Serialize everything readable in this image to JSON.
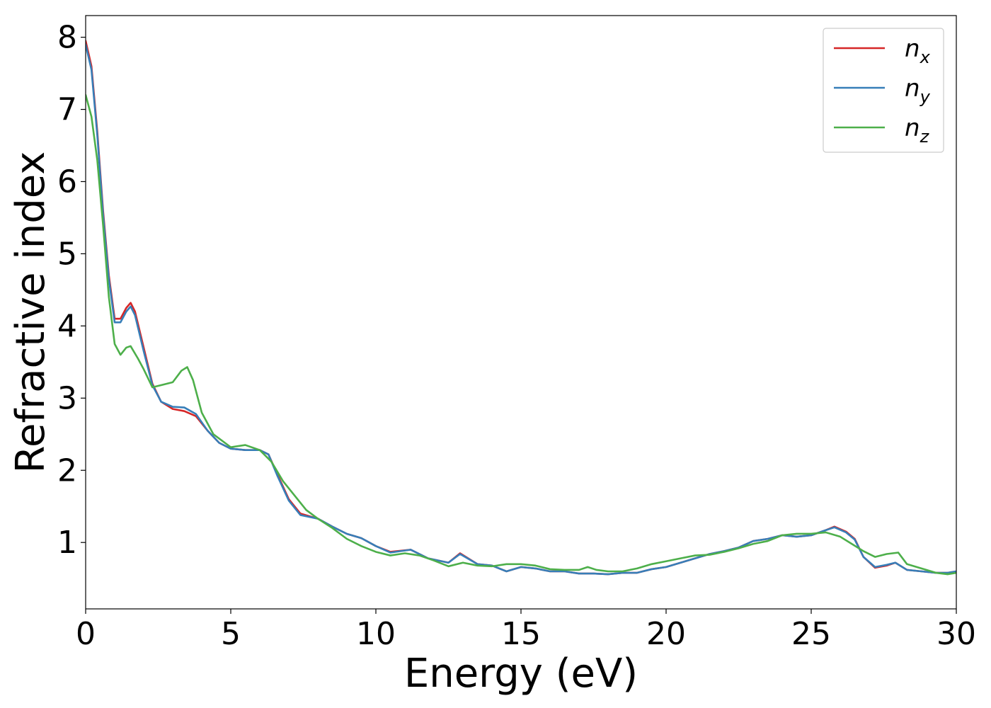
{
  "chart_data": {
    "type": "line",
    "title": "",
    "xlabel": "Energy (eV)",
    "ylabel": "Refractive index",
    "xlim": [
      0,
      30
    ],
    "ylim": [
      0.08,
      8.3
    ],
    "xticks": [
      0,
      5,
      10,
      15,
      20,
      25,
      30
    ],
    "xtick_labels": [
      "0",
      "5",
      "10",
      "15",
      "20",
      "25",
      "30"
    ],
    "yticks": [
      1,
      2,
      3,
      4,
      5,
      6,
      7,
      8
    ],
    "ytick_labels": [
      "1",
      "2",
      "3",
      "4",
      "5",
      "6",
      "7",
      "8"
    ],
    "grid": false,
    "legend_position": "top-right",
    "series": [
      {
        "name": "n",
        "subscript": "x",
        "color": "#d62728",
        "points": [
          [
            0,
            7.95
          ],
          [
            0.2,
            7.6
          ],
          [
            0.4,
            6.7
          ],
          [
            0.6,
            5.6
          ],
          [
            0.8,
            4.7
          ],
          [
            1.0,
            4.1
          ],
          [
            1.2,
            4.1
          ],
          [
            1.4,
            4.25
          ],
          [
            1.55,
            4.32
          ],
          [
            1.7,
            4.2
          ],
          [
            2.0,
            3.7
          ],
          [
            2.3,
            3.2
          ],
          [
            2.6,
            2.95
          ],
          [
            3.0,
            2.85
          ],
          [
            3.4,
            2.82
          ],
          [
            3.8,
            2.75
          ],
          [
            4.2,
            2.55
          ],
          [
            4.6,
            2.38
          ],
          [
            5.0,
            2.3
          ],
          [
            5.5,
            2.28
          ],
          [
            6.0,
            2.28
          ],
          [
            6.3,
            2.22
          ],
          [
            6.6,
            1.95
          ],
          [
            7.0,
            1.6
          ],
          [
            7.4,
            1.4
          ],
          [
            8.0,
            1.33
          ],
          [
            8.5,
            1.22
          ],
          [
            9.0,
            1.12
          ],
          [
            9.5,
            1.06
          ],
          [
            10.0,
            0.95
          ],
          [
            10.5,
            0.87
          ],
          [
            11.2,
            0.9
          ],
          [
            11.8,
            0.78
          ],
          [
            12.5,
            0.72
          ],
          [
            12.9,
            0.85
          ],
          [
            13.5,
            0.7
          ],
          [
            14.0,
            0.68
          ],
          [
            14.5,
            0.6
          ],
          [
            15.0,
            0.66
          ],
          [
            15.5,
            0.64
          ],
          [
            16.0,
            0.6
          ],
          [
            16.5,
            0.6
          ],
          [
            17.0,
            0.57
          ],
          [
            17.5,
            0.57
          ],
          [
            18.0,
            0.56
          ],
          [
            18.5,
            0.58
          ],
          [
            19.0,
            0.58
          ],
          [
            19.5,
            0.63
          ],
          [
            20.0,
            0.66
          ],
          [
            20.5,
            0.72
          ],
          [
            21.0,
            0.78
          ],
          [
            21.5,
            0.84
          ],
          [
            22.0,
            0.88
          ],
          [
            22.5,
            0.93
          ],
          [
            23.0,
            1.02
          ],
          [
            23.5,
            1.05
          ],
          [
            24.0,
            1.1
          ],
          [
            24.5,
            1.08
          ],
          [
            25.0,
            1.1
          ],
          [
            25.5,
            1.17
          ],
          [
            25.8,
            1.22
          ],
          [
            26.2,
            1.15
          ],
          [
            26.5,
            1.05
          ],
          [
            26.8,
            0.8
          ],
          [
            27.2,
            0.65
          ],
          [
            27.6,
            0.68
          ],
          [
            27.9,
            0.72
          ],
          [
            28.3,
            0.62
          ],
          [
            28.8,
            0.6
          ],
          [
            29.3,
            0.58
          ],
          [
            29.7,
            0.58
          ],
          [
            30.0,
            0.6
          ]
        ]
      },
      {
        "name": "n",
        "subscript": "y",
        "color": "#377eb8",
        "points": [
          [
            0,
            7.9
          ],
          [
            0.2,
            7.55
          ],
          [
            0.4,
            6.65
          ],
          [
            0.6,
            5.55
          ],
          [
            0.8,
            4.65
          ],
          [
            1.0,
            4.05
          ],
          [
            1.2,
            4.05
          ],
          [
            1.4,
            4.2
          ],
          [
            1.55,
            4.27
          ],
          [
            1.7,
            4.15
          ],
          [
            2.0,
            3.65
          ],
          [
            2.3,
            3.18
          ],
          [
            2.6,
            2.95
          ],
          [
            3.0,
            2.88
          ],
          [
            3.4,
            2.87
          ],
          [
            3.8,
            2.78
          ],
          [
            4.2,
            2.55
          ],
          [
            4.6,
            2.38
          ],
          [
            5.0,
            2.3
          ],
          [
            5.5,
            2.28
          ],
          [
            6.0,
            2.28
          ],
          [
            6.3,
            2.22
          ],
          [
            6.6,
            1.93
          ],
          [
            7.0,
            1.58
          ],
          [
            7.4,
            1.38
          ],
          [
            8.0,
            1.33
          ],
          [
            8.5,
            1.22
          ],
          [
            9.0,
            1.12
          ],
          [
            9.5,
            1.06
          ],
          [
            10.0,
            0.95
          ],
          [
            10.5,
            0.86
          ],
          [
            11.2,
            0.9
          ],
          [
            11.8,
            0.78
          ],
          [
            12.5,
            0.72
          ],
          [
            12.9,
            0.84
          ],
          [
            13.5,
            0.7
          ],
          [
            14.0,
            0.68
          ],
          [
            14.5,
            0.6
          ],
          [
            15.0,
            0.66
          ],
          [
            15.5,
            0.64
          ],
          [
            16.0,
            0.6
          ],
          [
            16.5,
            0.6
          ],
          [
            17.0,
            0.57
          ],
          [
            17.5,
            0.57
          ],
          [
            18.0,
            0.56
          ],
          [
            18.5,
            0.58
          ],
          [
            19.0,
            0.58
          ],
          [
            19.5,
            0.63
          ],
          [
            20.0,
            0.66
          ],
          [
            20.5,
            0.72
          ],
          [
            21.0,
            0.78
          ],
          [
            21.5,
            0.84
          ],
          [
            22.0,
            0.88
          ],
          [
            22.5,
            0.93
          ],
          [
            23.0,
            1.02
          ],
          [
            23.5,
            1.05
          ],
          [
            24.0,
            1.1
          ],
          [
            24.5,
            1.08
          ],
          [
            25.0,
            1.1
          ],
          [
            25.5,
            1.17
          ],
          [
            25.8,
            1.21
          ],
          [
            26.2,
            1.14
          ],
          [
            26.5,
            1.04
          ],
          [
            26.8,
            0.8
          ],
          [
            27.2,
            0.66
          ],
          [
            27.6,
            0.69
          ],
          [
            27.9,
            0.72
          ],
          [
            28.3,
            0.62
          ],
          [
            28.8,
            0.6
          ],
          [
            29.3,
            0.58
          ],
          [
            29.7,
            0.58
          ],
          [
            30.0,
            0.6
          ]
        ]
      },
      {
        "name": "n",
        "subscript": "z",
        "color": "#4daf4a",
        "points": [
          [
            0,
            7.2
          ],
          [
            0.2,
            6.9
          ],
          [
            0.4,
            6.3
          ],
          [
            0.6,
            5.4
          ],
          [
            0.8,
            4.4
          ],
          [
            1.0,
            3.75
          ],
          [
            1.2,
            3.6
          ],
          [
            1.4,
            3.7
          ],
          [
            1.55,
            3.72
          ],
          [
            1.8,
            3.55
          ],
          [
            2.0,
            3.4
          ],
          [
            2.3,
            3.15
          ],
          [
            2.6,
            3.18
          ],
          [
            3.0,
            3.22
          ],
          [
            3.3,
            3.38
          ],
          [
            3.5,
            3.43
          ],
          [
            3.7,
            3.25
          ],
          [
            4.0,
            2.8
          ],
          [
            4.4,
            2.5
          ],
          [
            5.0,
            2.32
          ],
          [
            5.5,
            2.35
          ],
          [
            6.0,
            2.28
          ],
          [
            6.4,
            2.12
          ],
          [
            6.8,
            1.85
          ],
          [
            7.2,
            1.65
          ],
          [
            7.6,
            1.45
          ],
          [
            8.0,
            1.33
          ],
          [
            8.5,
            1.2
          ],
          [
            9.0,
            1.05
          ],
          [
            9.5,
            0.95
          ],
          [
            10.0,
            0.87
          ],
          [
            10.5,
            0.82
          ],
          [
            11.0,
            0.85
          ],
          [
            11.5,
            0.82
          ],
          [
            12.0,
            0.75
          ],
          [
            12.5,
            0.67
          ],
          [
            13.0,
            0.72
          ],
          [
            13.5,
            0.68
          ],
          [
            14.0,
            0.67
          ],
          [
            14.5,
            0.7
          ],
          [
            15.0,
            0.7
          ],
          [
            15.5,
            0.68
          ],
          [
            16.0,
            0.63
          ],
          [
            16.5,
            0.62
          ],
          [
            17.0,
            0.62
          ],
          [
            17.3,
            0.66
          ],
          [
            17.6,
            0.62
          ],
          [
            18.0,
            0.6
          ],
          [
            18.5,
            0.6
          ],
          [
            19.0,
            0.64
          ],
          [
            19.5,
            0.7
          ],
          [
            20.0,
            0.74
          ],
          [
            20.5,
            0.78
          ],
          [
            21.0,
            0.82
          ],
          [
            21.5,
            0.83
          ],
          [
            22.0,
            0.87
          ],
          [
            22.5,
            0.92
          ],
          [
            23.0,
            0.98
          ],
          [
            23.5,
            1.02
          ],
          [
            24.0,
            1.1
          ],
          [
            24.5,
            1.12
          ],
          [
            25.0,
            1.12
          ],
          [
            25.5,
            1.14
          ],
          [
            26.0,
            1.08
          ],
          [
            26.4,
            0.98
          ],
          [
            26.8,
            0.88
          ],
          [
            27.2,
            0.8
          ],
          [
            27.6,
            0.84
          ],
          [
            28.0,
            0.86
          ],
          [
            28.3,
            0.7
          ],
          [
            28.8,
            0.64
          ],
          [
            29.3,
            0.58
          ],
          [
            29.7,
            0.56
          ],
          [
            30.0,
            0.58
          ]
        ]
      }
    ]
  }
}
